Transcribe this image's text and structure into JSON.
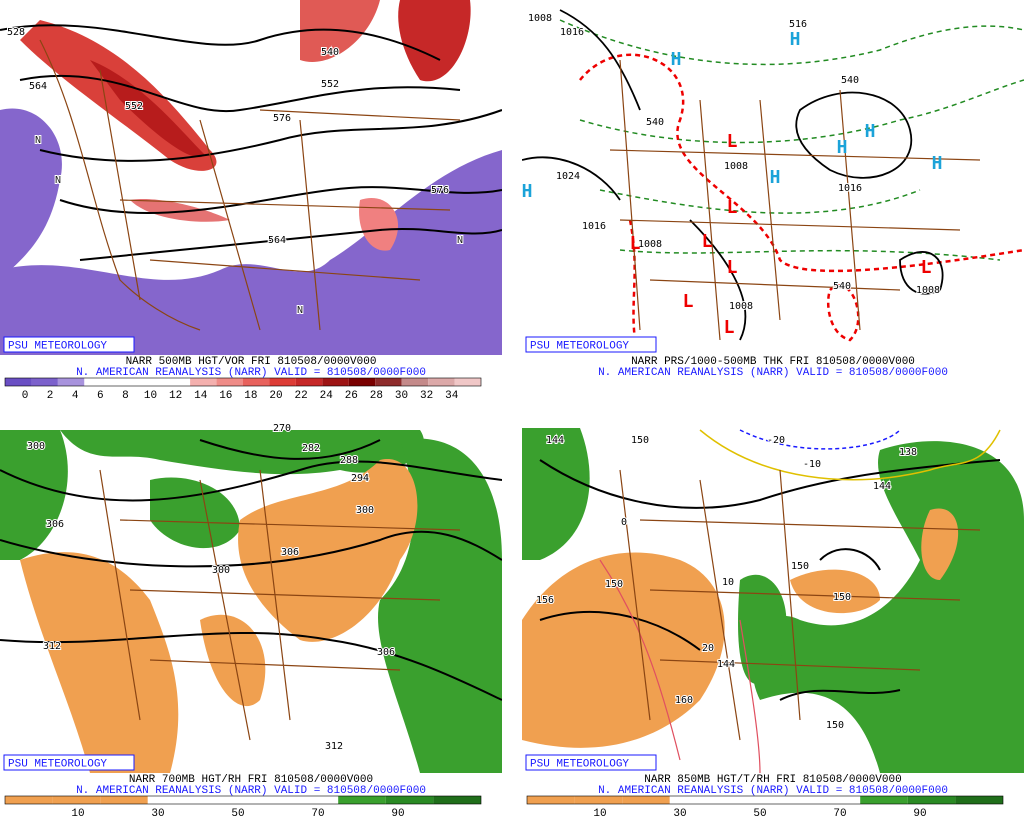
{
  "panels": [
    {
      "brand": "PSU METEOROLOGY",
      "title": "NARR 500MB HGT/VOR FRI 810508/0000V000",
      "subtitle": "N. AMERICAN REANALYSIS (NARR) VALID = 810508/0000F000",
      "colorbar_labels": [
        "0",
        "2",
        "4",
        "6",
        "8",
        "10",
        "12",
        "14",
        "16",
        "18",
        "20",
        "22",
        "24",
        "26",
        "28",
        "30",
        "32",
        "34"
      ],
      "map_labels": [
        "528",
        "540",
        "552",
        "552",
        "564",
        "576",
        "564",
        "576",
        "N",
        "N",
        "N",
        "N"
      ]
    },
    {
      "brand": "PSU METEOROLOGY",
      "title": "NARR PRS/1000-500MB THK FRI 810508/0000V000",
      "subtitle": "N. AMERICAN REANALYSIS (NARR) VALID = 810508/0000F000",
      "map_labels": [
        "1008",
        "1016",
        "516",
        "540",
        "540",
        "1008",
        "1024",
        "1016",
        "1008",
        "1016",
        "1008",
        "1008",
        "540",
        "H",
        "H",
        "H",
        "H",
        "H",
        "H",
        "H",
        "L",
        "L",
        "L",
        "L",
        "L",
        "L",
        "L",
        "L"
      ]
    },
    {
      "brand": "PSU METEOROLOGY",
      "title": "NARR 700MB HGT/RH FRI 810508/0000V000",
      "subtitle": "N. AMERICAN REANALYSIS (NARR) VALID = 810508/0000F000",
      "colorbar_labels": [
        "10",
        "30",
        "50",
        "70",
        "90"
      ],
      "map_labels": [
        "300",
        "270",
        "282",
        "288",
        "294",
        "306",
        "300",
        "300",
        "306",
        "312",
        "306",
        "312"
      ]
    },
    {
      "brand": "PSU METEOROLOGY",
      "title": "NARR 850MB HGT/T/RH FRI 810508/0000V000",
      "subtitle": "N. AMERICAN REANALYSIS (NARR) VALID = 810508/0000F000",
      "colorbar_labels": [
        "10",
        "30",
        "50",
        "70",
        "90"
      ],
      "map_labels": [
        "144",
        "150",
        "-20",
        "-10",
        "138",
        "144",
        "0",
        "150",
        "156",
        "150",
        "150",
        "10",
        "20",
        "144",
        "150",
        "160"
      ]
    }
  ]
}
